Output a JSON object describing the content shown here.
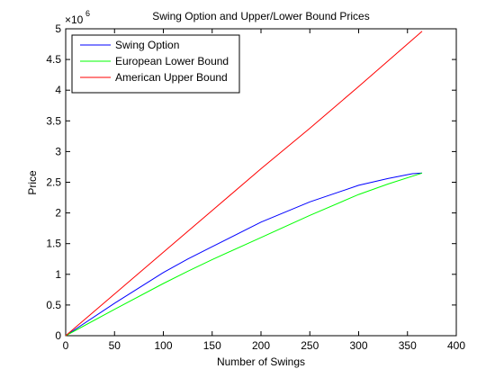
{
  "chart_data": {
    "type": "line",
    "title": "Swing Option and Upper/Lower Bound Prices",
    "xlabel": "Number of Swings",
    "ylabel": "Price",
    "y_exponent": "6",
    "y_exponent_prefix": "×10",
    "xlim": [
      0,
      400
    ],
    "ylim": [
      0,
      5
    ],
    "x_ticks": [
      "0",
      "50",
      "100",
      "150",
      "200",
      "250",
      "300",
      "350",
      "400"
    ],
    "y_ticks": [
      "0",
      "0.5",
      "1",
      "1.5",
      "2",
      "2.5",
      "3",
      "3.5",
      "4",
      "4.5",
      "5"
    ],
    "grid": false,
    "legend_position": "top-left",
    "series": [
      {
        "name": "Swing Option",
        "color": "#0000ff",
        "x": [
          0,
          50,
          100,
          125,
          150,
          200,
          250,
          300,
          330,
          355,
          365
        ],
        "y": [
          0,
          0.53,
          1.03,
          1.25,
          1.45,
          1.85,
          2.18,
          2.45,
          2.56,
          2.64,
          2.65
        ]
      },
      {
        "name": "European Lower Bound",
        "color": "#00ff00",
        "x": [
          0,
          50,
          100,
          125,
          150,
          200,
          250,
          300,
          330,
          365
        ],
        "y": [
          0,
          0.43,
          0.85,
          1.05,
          1.24,
          1.6,
          1.96,
          2.3,
          2.47,
          2.65
        ]
      },
      {
        "name": "American Upper Bound",
        "color": "#ff0000",
        "x": [
          0,
          50,
          100,
          150,
          200,
          250,
          300,
          365
        ],
        "y": [
          0,
          0.68,
          1.36,
          2.04,
          2.72,
          3.38,
          4.06,
          4.96
        ]
      }
    ]
  }
}
